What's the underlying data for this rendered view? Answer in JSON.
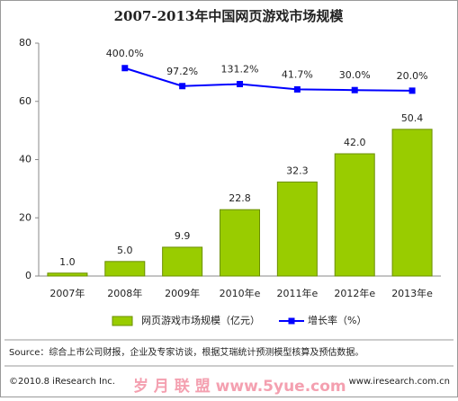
{
  "chart_data": {
    "type": "bar_line",
    "title": "2007-2013年中国网页游戏市场规模",
    "categories": [
      "2007年",
      "2008年",
      "2009年",
      "2010年e",
      "2011年e",
      "2012年e",
      "2013年e"
    ],
    "series": [
      {
        "name": "网页游戏市场规模（亿元）",
        "type": "bar",
        "color": "#99cc00",
        "values": [
          1.0,
          5.0,
          9.9,
          22.8,
          32.3,
          42.0,
          50.4
        ],
        "value_labels": [
          "1.0",
          "5.0",
          "9.9",
          "22.8",
          "32.3",
          "42.0",
          "50.4"
        ]
      },
      {
        "name": "增长率（%）",
        "type": "line",
        "color": "#0000ff",
        "axis": "y2",
        "values": [
          null,
          400.0,
          97.2,
          131.2,
          41.7,
          30.0,
          20.0
        ],
        "value_labels": [
          null,
          "400.0%",
          "97.2%",
          "131.2%",
          "41.7%",
          "30.0%",
          "20.0%"
        ]
      }
    ],
    "ylim": [
      0,
      80
    ],
    "yticks": [
      0,
      20,
      40,
      60,
      80
    ],
    "y2lim": [
      -3100,
      820
    ],
    "source": "Source：综合上市公司财报，企业及专家访谈，根据艾瑞统计预测模型核算及预估数据。",
    "copyright": "©2010.8 iResearch Inc.",
    "website": "www.iresearch.com.cn",
    "watermark": "岁 月 联 盟  www.5yue.com"
  }
}
